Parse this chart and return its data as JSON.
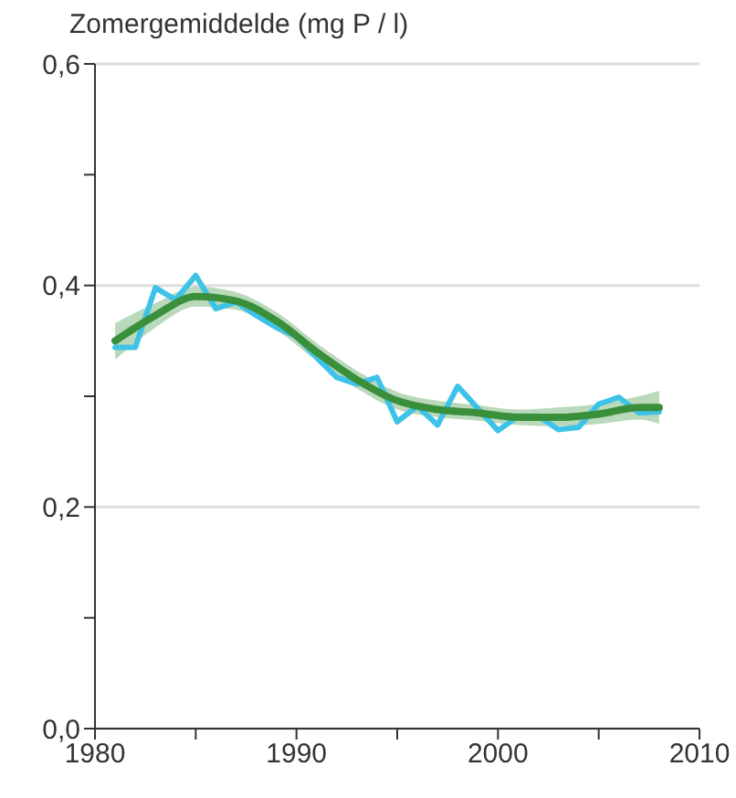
{
  "chart_data": {
    "type": "line",
    "ylabel": "Zomergemiddelde (mg P / l)",
    "xlim": [
      1980,
      2010
    ],
    "xticks": [
      1980,
      {
        "value": 1985,
        "label": null
      },
      1990,
      {
        "value": 1995,
        "label": null
      },
      2000,
      {
        "value": 2005,
        "label": null
      },
      2010
    ],
    "ylim": [
      0,
      0.6
    ],
    "yticks": [
      {
        "value": 0,
        "label": "0,0"
      },
      {
        "value": 0.1,
        "label": null
      },
      {
        "value": 0.2,
        "label": "0,2"
      },
      {
        "value": 0.3,
        "label": null
      },
      {
        "value": 0.4,
        "label": "0,4"
      },
      {
        "value": 0.5,
        "label": null
      },
      {
        "value": 0.6,
        "label": "0,6"
      }
    ],
    "grid": "y",
    "marker": "none",
    "line_style": "solid",
    "series": [
      {
        "color": "#3ec3e8",
        "x": [
          1981,
          1982,
          1983,
          1984,
          1985,
          1986,
          1987,
          1988,
          1989,
          1990,
          1991,
          1992,
          1993,
          1994,
          1995,
          1996,
          1997,
          1998,
          1999,
          2000,
          2001,
          2002,
          2003,
          2004,
          2005,
          2006,
          2007,
          2008
        ],
        "values": [
          0.344,
          0.344,
          0.398,
          0.387,
          0.409,
          0.379,
          0.385,
          0.373,
          0.362,
          0.354,
          0.335,
          0.317,
          0.311,
          0.317,
          0.277,
          0.291,
          0.274,
          0.309,
          0.289,
          0.269,
          0.282,
          0.282,
          0.27,
          0.272,
          0.293,
          0.299,
          0.285,
          0.286
        ]
      },
      {
        "color": "#3a8f3a",
        "x": [
          1981,
          1983,
          1985,
          1987,
          1989,
          1991,
          1993,
          1995,
          1997,
          1999,
          2001,
          2003,
          2005,
          2007,
          2008
        ],
        "values": [
          0.35,
          0.373,
          0.39,
          0.386,
          0.368,
          0.34,
          0.315,
          0.296,
          0.288,
          0.285,
          0.281,
          0.281,
          0.284,
          0.29,
          0.29
        ],
        "lower": [
          0.333,
          0.362,
          0.381,
          0.378,
          0.36,
          0.332,
          0.307,
          0.288,
          0.281,
          0.278,
          0.274,
          0.273,
          0.275,
          0.279,
          0.275
        ],
        "upper": [
          0.366,
          0.384,
          0.399,
          0.394,
          0.376,
          0.348,
          0.323,
          0.304,
          0.296,
          0.292,
          0.288,
          0.29,
          0.293,
          0.3,
          0.305
        ]
      }
    ]
  }
}
